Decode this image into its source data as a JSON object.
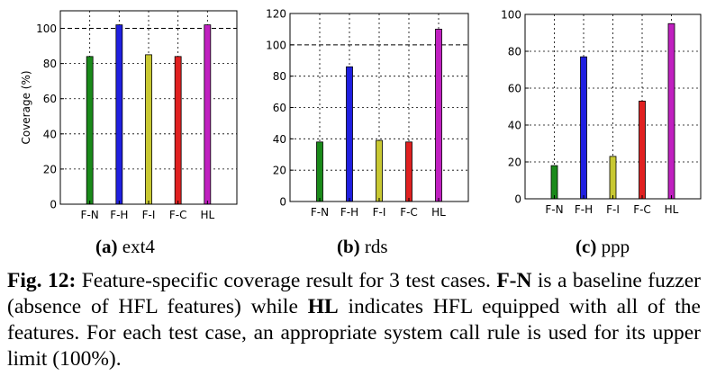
{
  "chart_data": [
    {
      "type": "bar",
      "categories": [
        "F-N",
        "F-H",
        "F-I",
        "F-C",
        "HL"
      ],
      "values": [
        84,
        102,
        85,
        84,
        102
      ],
      "ylabel": "Coverage (%)",
      "ylim": [
        0,
        110
      ],
      "yticks": [
        0,
        20,
        40,
        60,
        80,
        100
      ],
      "grid": true,
      "dashed_reference": 100,
      "colors": [
        "#1a8a1a",
        "#1f1fe0",
        "#c8c832",
        "#e02020",
        "#c020c0"
      ],
      "sublabel": {
        "letter": "(a)",
        "text": "ext4"
      }
    },
    {
      "type": "bar",
      "categories": [
        "F-N",
        "F-H",
        "F-I",
        "F-C",
        "HL"
      ],
      "values": [
        38,
        86,
        39,
        38,
        110
      ],
      "ylabel": "",
      "ylim": [
        0,
        120
      ],
      "yticks": [
        0,
        20,
        40,
        60,
        80,
        100,
        120
      ],
      "grid": true,
      "dashed_reference": 100,
      "colors": [
        "#1a8a1a",
        "#1f1fe0",
        "#c8c832",
        "#e02020",
        "#c020c0"
      ],
      "sublabel": {
        "letter": "(b)",
        "text": "rds"
      }
    },
    {
      "type": "bar",
      "categories": [
        "F-N",
        "F-H",
        "F-I",
        "F-C",
        "HL"
      ],
      "values": [
        18,
        77,
        23,
        53,
        95
      ],
      "ylabel": "",
      "ylim": [
        0,
        100
      ],
      "yticks": [
        0,
        20,
        40,
        60,
        80,
        100
      ],
      "grid": true,
      "dashed_reference": null,
      "colors": [
        "#1a8a1a",
        "#1f1fe0",
        "#c8c832",
        "#e02020",
        "#c020c0"
      ],
      "sublabel": {
        "letter": "(c)",
        "text": "ppp"
      }
    }
  ],
  "caption": {
    "label": "Fig. 12:",
    "part1": " Feature-specific coverage result for 3 test cases. ",
    "bold1": "F-N",
    "part2": " is a baseline fuzzer (absence of HFL features) while ",
    "bold2": "HL",
    "part3": " indicates HFL equipped with all of the features. For each test case, an appropriate system call rule is used for its upper limit (100%)."
  }
}
